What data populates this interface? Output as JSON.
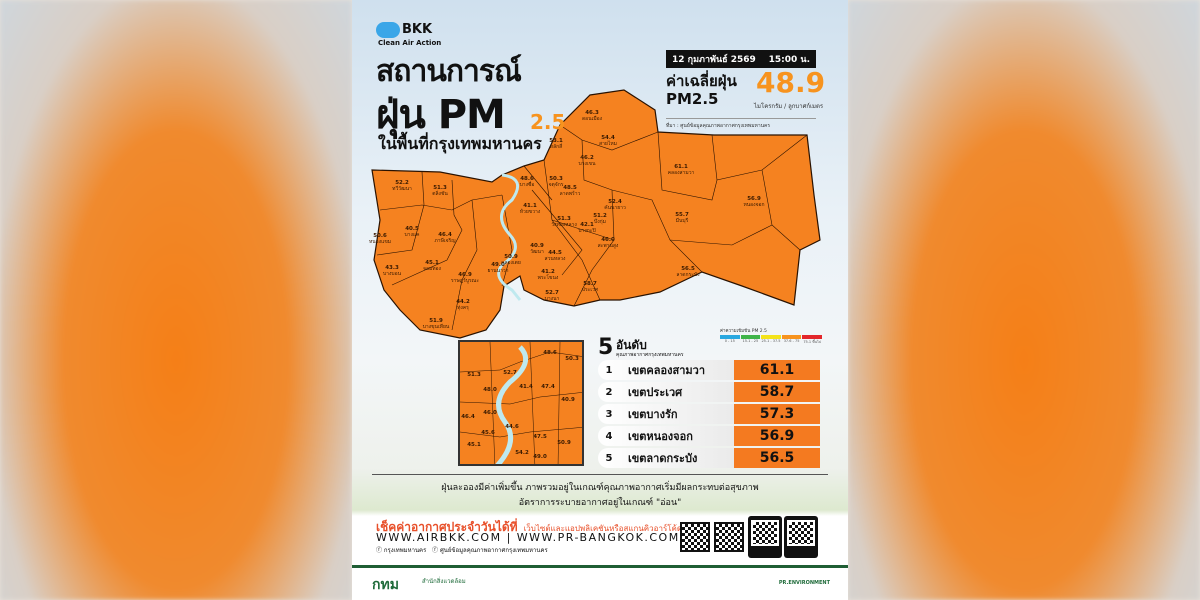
{
  "brand": {
    "name": "BKK",
    "tagline": "Clean Air Action"
  },
  "title": {
    "line1": "สถานการณ์",
    "line2": "ฝุ่น PM",
    "subscript": "2.5",
    "line3": "ในพื้นที่กรุงเทพมหานคร"
  },
  "date": "12 กุมภาพันธ์ 2569",
  "time": "15:00 น.",
  "average": {
    "label_line1": "ค่าเฉลี่ยฝุ่น",
    "label_line2": "PM2.5",
    "value": "48.9",
    "unit": "ไมโครกรัม / ลูกบาศก์เมตร"
  },
  "source": "ที่มา : ศูนย์ข้อมูลคุณภาพอากาศกรุงเทพมหานคร",
  "colors": {
    "map_fill": "#f58220",
    "value_box": "#f47a20",
    "accent": "#f7931e",
    "green": "#1f5e34"
  },
  "districts": [
    {
      "v": "52.2",
      "n": "ทวีวัฒนา"
    },
    {
      "v": "51.3",
      "n": "ตลิ่งชัน"
    },
    {
      "v": "50.6",
      "n": "หนองแขม"
    },
    {
      "v": "40.5",
      "n": "บางแค"
    },
    {
      "v": "46.4",
      "n": "ภาษีเจริญ"
    },
    {
      "v": "43.3",
      "n": "บางบอน"
    },
    {
      "v": "45.1",
      "n": "จอมทอง"
    },
    {
      "v": "46.9",
      "n": "ราษฎร์บูรณะ"
    },
    {
      "v": "44.2",
      "n": "ทุ่งครุ"
    },
    {
      "v": "51.9",
      "n": "บางขุนเทียน"
    },
    {
      "v": "49.0",
      "n": "ยานนาวา"
    },
    {
      "v": "50.9",
      "n": "คลองเตย"
    },
    {
      "v": "40.9",
      "n": "วัฒนา"
    },
    {
      "v": "44.5",
      "n": "สวนหลวง"
    },
    {
      "v": "41.2",
      "n": "พระโขนง"
    },
    {
      "v": "52.7",
      "n": "บางนา"
    },
    {
      "v": "58.7",
      "n": "ประเวศ"
    },
    {
      "v": "46.0",
      "n": "สะพานสูง"
    },
    {
      "v": "42.1",
      "n": "บางกะปิ"
    },
    {
      "v": "51.3",
      "n": "วังทองหลาง"
    },
    {
      "v": "51.2",
      "n": "บึงกุ่ม"
    },
    {
      "v": "52.4",
      "n": "คันนายาว"
    },
    {
      "v": "48.5",
      "n": "ลาดพร้าว"
    },
    {
      "v": "46.2",
      "n": "บางเขน"
    },
    {
      "v": "50.3",
      "n": "จตุจักร"
    },
    {
      "v": "48.6",
      "n": "บางซื่อ"
    },
    {
      "v": "53.1",
      "n": "หลักสี่"
    },
    {
      "v": "46.3",
      "n": "ดอนเมือง"
    },
    {
      "v": "54.4",
      "n": "สายไหม"
    },
    {
      "v": "61.1",
      "n": "คลองสามวา"
    },
    {
      "v": "56.9",
      "n": "หนองจอก"
    },
    {
      "v": "55.7",
      "n": "มีนบุรี"
    },
    {
      "v": "56.5",
      "n": "ลาดกระบัง"
    },
    {
      "v": "41.1",
      "n": "ห้วยขวาง"
    }
  ],
  "inset_values": [
    "48.6",
    "50.3",
    "52.7",
    "51.3",
    "48.0",
    "41.4",
    "47.4",
    "40.9",
    "46.4",
    "46.0",
    "45.6",
    "44.6",
    "47.5",
    "45.1",
    "54.2",
    "49.0",
    "50.9"
  ],
  "ranking": {
    "number": "5",
    "title": "อันดับ",
    "subtitle": "คุณภาพอากาศกรุงเทพมหานคร",
    "items": [
      {
        "rank": "1",
        "name": "เขตคลองสามวา",
        "value": "61.1"
      },
      {
        "rank": "2",
        "name": "เขตประเวศ",
        "value": "58.7"
      },
      {
        "rank": "3",
        "name": "เขตบางรัก",
        "value": "57.3"
      },
      {
        "rank": "4",
        "name": "เขตหนองจอก",
        "value": "56.9"
      },
      {
        "rank": "5",
        "name": "เขตลาดกระบัง",
        "value": "56.5"
      }
    ]
  },
  "legend": {
    "title": "ค่าความเข้มข้น PM 2.5",
    "levels": [
      {
        "range": "0 - 15",
        "color": "#29a8e0"
      },
      {
        "range": "15.1 - 25",
        "color": "#3fb449"
      },
      {
        "range": "25.1 - 37.5",
        "color": "#f4e31b"
      },
      {
        "range": "37.6 - 75",
        "color": "#f7931e"
      },
      {
        "range": "75.1 ขึ้นไป",
        "color": "#e3262b"
      }
    ]
  },
  "message": {
    "line1": "ฝุ่นละอองมีค่าเพิ่มขึ้น ภาพรวมอยู่ในเกณฑ์คุณภาพอากาศเริ่มมีผลกระทบต่อสุขภาพ",
    "line2": "อัตราการระบายอากาศอยู่ในเกณฑ์ \"อ่อน\""
  },
  "footer": {
    "check": "เช็คค่าอากาศประจำวันได้ที่",
    "check_sub": "เว็บไซต์และแอปพลิเคชันหรือสแกนคิวอาร์โค้ด",
    "websites": "WWW.AIRBKK.COM | WWW.PR-BANGKOK.COM",
    "fb1": "กรุงเทพมหานคร",
    "fb2": "ศูนย์ข้อมูลคุณภาพอากาศกรุงเทพมหานคร",
    "org": "กทม",
    "dept": "สำนักสิ่งแวดล้อม",
    "social": "PR.ENVIRONMENT"
  }
}
